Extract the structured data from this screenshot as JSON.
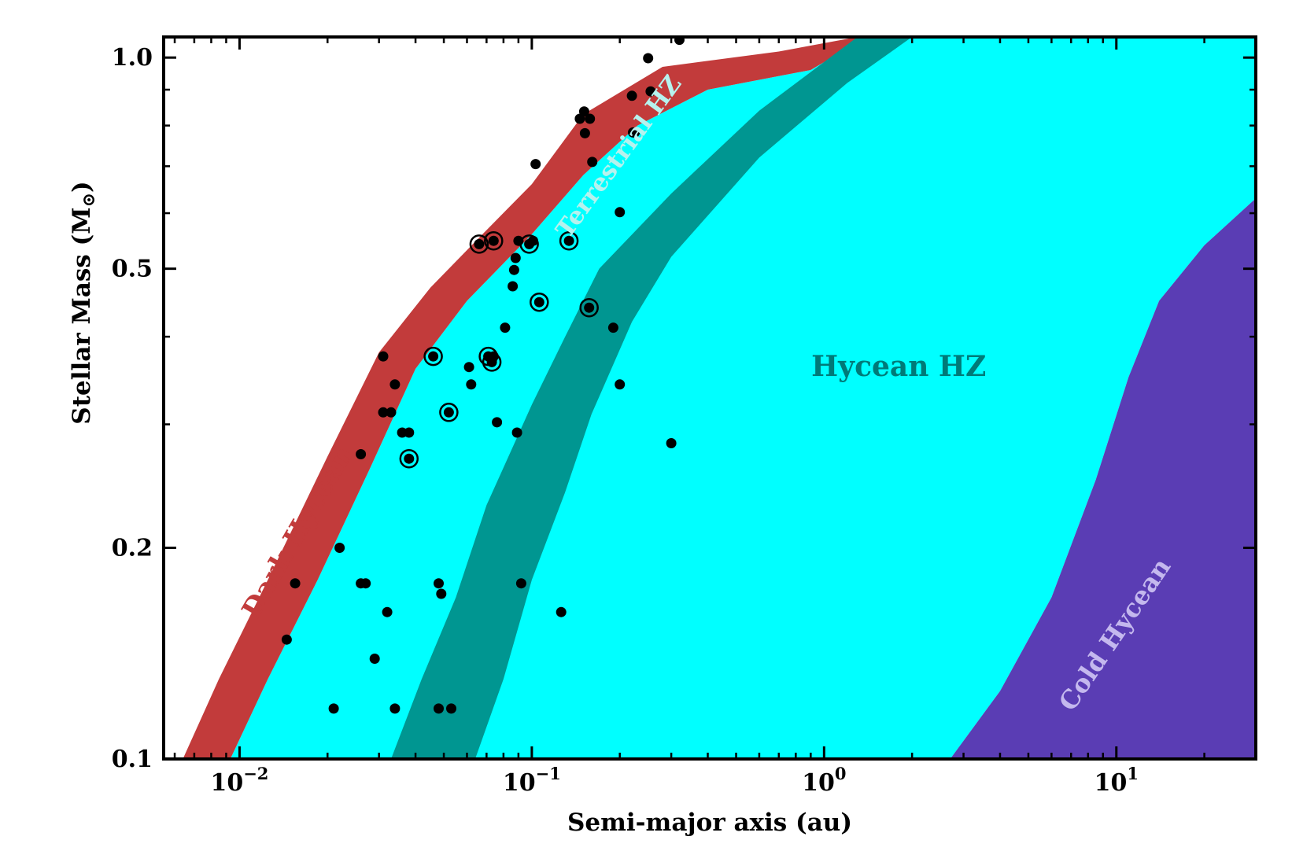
{
  "chart_data": {
    "type": "scatter",
    "title": "",
    "xlabel": "Semi-major axis (au)",
    "ylabel": "Stellar Mass (M",
    "ylabel_symbol": "⊙",
    "ylabel_close": ")",
    "xscale": "log",
    "yscale": "log",
    "xlim": [
      0.0055,
      30
    ],
    "ylim": [
      0.1,
      1.07
    ],
    "xticks": [
      {
        "value": 0.01,
        "base": "10",
        "exp": "−2"
      },
      {
        "value": 0.1,
        "base": "10",
        "exp": "−1"
      },
      {
        "value": 1,
        "base": "10",
        "exp": "0"
      },
      {
        "value": 10,
        "base": "10",
        "exp": "1"
      }
    ],
    "yticks": [
      {
        "value": 0.1,
        "label": "0.1"
      },
      {
        "value": 0.2,
        "label": "0.2"
      },
      {
        "value": 0.5,
        "label": "0.5"
      },
      {
        "value": 1.0,
        "label": "1.0"
      }
    ],
    "colors": {
      "dark_hycean": "#c23b3b",
      "hycean_hz": "#00ffff",
      "terrestrial_hz": "#009691",
      "cold_hycean": "#5a3db4",
      "hycean_label": "#007a78",
      "terrestrial_label": "#b6f2ee",
      "cold_label": "#c4b8ee",
      "dark_label": "#c23b3b",
      "points": "#000000"
    },
    "regions": [
      {
        "name": "Dark Hycean",
        "label": "Dark Hycean",
        "inner_edge": [
          [
            0.0064,
            0.1
          ],
          [
            0.0085,
            0.13
          ],
          [
            0.0125,
            0.18
          ],
          [
            0.02,
            0.27
          ],
          [
            0.03,
            0.38
          ],
          [
            0.045,
            0.47
          ],
          [
            0.065,
            0.55
          ],
          [
            0.1,
            0.66
          ],
          [
            0.15,
            0.83
          ],
          [
            0.28,
            0.97
          ],
          [
            0.7,
            1.02
          ],
          [
            1.3,
            1.07
          ]
        ],
        "outer_edge": [
          [
            0.0093,
            0.1
          ],
          [
            0.0125,
            0.13
          ],
          [
            0.0185,
            0.18
          ],
          [
            0.028,
            0.26
          ],
          [
            0.04,
            0.36
          ],
          [
            0.06,
            0.45
          ],
          [
            0.1,
            0.56
          ],
          [
            0.15,
            0.68
          ],
          [
            0.23,
            0.8
          ],
          [
            0.4,
            0.9
          ],
          [
            0.9,
            0.96
          ],
          [
            1.4,
            1.07
          ]
        ]
      },
      {
        "name": "Hycean HZ",
        "label": "Hycean HZ",
        "inner_edge": [
          [
            0.0093,
            0.1
          ],
          [
            0.0125,
            0.13
          ],
          [
            0.0185,
            0.18
          ],
          [
            0.028,
            0.26
          ],
          [
            0.04,
            0.36
          ],
          [
            0.06,
            0.45
          ],
          [
            0.1,
            0.56
          ],
          [
            0.15,
            0.68
          ],
          [
            0.23,
            0.8
          ],
          [
            0.4,
            0.9
          ],
          [
            0.9,
            0.96
          ],
          [
            1.4,
            1.07
          ]
        ],
        "outer_edge": [
          [
            2.7,
            0.1
          ],
          [
            4.0,
            0.125
          ],
          [
            6.0,
            0.17
          ],
          [
            8.5,
            0.25
          ],
          [
            11.0,
            0.35
          ],
          [
            14.0,
            0.45
          ],
          [
            20.0,
            0.54
          ],
          [
            30.0,
            0.63
          ]
        ]
      },
      {
        "name": "Terrestrial HZ",
        "label": "Terrestrial HZ",
        "inner_edge": [
          [
            0.033,
            0.1
          ],
          [
            0.042,
            0.13
          ],
          [
            0.055,
            0.17
          ],
          [
            0.07,
            0.23
          ],
          [
            0.1,
            0.32
          ],
          [
            0.13,
            0.4
          ],
          [
            0.17,
            0.5
          ],
          [
            0.3,
            0.64
          ],
          [
            0.6,
            0.84
          ],
          [
            1.3,
            1.07
          ]
        ],
        "outer_edge": [
          [
            0.064,
            0.1
          ],
          [
            0.08,
            0.13
          ],
          [
            0.1,
            0.18
          ],
          [
            0.13,
            0.24
          ],
          [
            0.16,
            0.31
          ],
          [
            0.22,
            0.42
          ],
          [
            0.3,
            0.52
          ],
          [
            0.6,
            0.72
          ],
          [
            1.2,
            0.92
          ],
          [
            2.0,
            1.07
          ]
        ]
      },
      {
        "name": "Cold Hycean",
        "label": "Cold Hycean",
        "inner_edge": [
          [
            2.7,
            0.1
          ],
          [
            4.0,
            0.125
          ],
          [
            6.0,
            0.17
          ],
          [
            8.5,
            0.25
          ],
          [
            11.0,
            0.35
          ],
          [
            14.0,
            0.45
          ],
          [
            20.0,
            0.54
          ],
          [
            30.0,
            0.63
          ]
        ]
      }
    ],
    "region_labels": [
      {
        "key": "dark",
        "text": "Dark Hycean",
        "x": 0.016,
        "y": 0.21,
        "angle": -60
      },
      {
        "key": "terrestrial",
        "text": "Terrestrial HZ",
        "x": 0.2,
        "y": 0.72,
        "angle": -54
      },
      {
        "key": "hycean",
        "text": "Hycean HZ",
        "x": 1.8,
        "y": 0.36,
        "angle": 0
      },
      {
        "key": "cold",
        "text": "Cold Hycean",
        "x": 10.0,
        "y": 0.15,
        "angle": -56
      }
    ],
    "points": [
      [
        0.0145,
        0.148
      ],
      [
        0.0155,
        0.178
      ],
      [
        0.021,
        0.118
      ],
      [
        0.022,
        0.2
      ],
      [
        0.026,
        0.272
      ],
      [
        0.026,
        0.178
      ],
      [
        0.027,
        0.178
      ],
      [
        0.029,
        0.139
      ],
      [
        0.031,
        0.375
      ],
      [
        0.031,
        0.312
      ],
      [
        0.032,
        0.162
      ],
      [
        0.033,
        0.312
      ],
      [
        0.034,
        0.342
      ],
      [
        0.034,
        0.118
      ],
      [
        0.036,
        0.292
      ],
      [
        0.038,
        0.292
      ],
      [
        0.048,
        0.178
      ],
      [
        0.048,
        0.118
      ],
      [
        0.049,
        0.172
      ],
      [
        0.053,
        0.118
      ],
      [
        0.061,
        0.362
      ],
      [
        0.062,
        0.342
      ],
      [
        0.074,
        0.375
      ],
      [
        0.076,
        0.302
      ],
      [
        0.081,
        0.412
      ],
      [
        0.086,
        0.472
      ],
      [
        0.087,
        0.498
      ],
      [
        0.088,
        0.518
      ],
      [
        0.089,
        0.292
      ],
      [
        0.09,
        0.548
      ],
      [
        0.092,
        0.178
      ],
      [
        0.101,
        0.548
      ],
      [
        0.103,
        0.705
      ],
      [
        0.126,
        0.162
      ],
      [
        0.146,
        0.818
      ],
      [
        0.151,
        0.838
      ],
      [
        0.152,
        0.78
      ],
      [
        0.158,
        0.818
      ],
      [
        0.161,
        0.71
      ],
      [
        0.19,
        0.412
      ],
      [
        0.2,
        0.602
      ],
      [
        0.2,
        0.342
      ],
      [
        0.22,
        0.882
      ],
      [
        0.222,
        0.782
      ],
      [
        0.225,
        0.782
      ],
      [
        0.25,
        0.998
      ],
      [
        0.255,
        0.895
      ],
      [
        0.3,
        0.282
      ],
      [
        0.32,
        1.06
      ]
    ],
    "ringed_points": [
      [
        0.046,
        0.375
      ],
      [
        0.038,
        0.268
      ],
      [
        0.052,
        0.312
      ],
      [
        0.066,
        0.542
      ],
      [
        0.074,
        0.548
      ],
      [
        0.071,
        0.375
      ],
      [
        0.073,
        0.368
      ],
      [
        0.098,
        0.542
      ],
      [
        0.106,
        0.448
      ],
      [
        0.134,
        0.548
      ],
      [
        0.157,
        0.44
      ]
    ]
  }
}
